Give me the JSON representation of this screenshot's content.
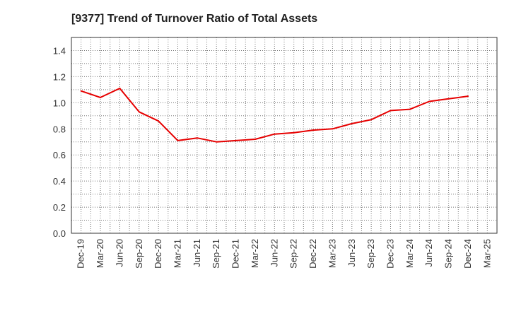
{
  "chart_data": {
    "type": "line",
    "title": "[9377]  Trend of Turnover Ratio of Total Assets",
    "xlabel": "",
    "ylabel": "",
    "x": [
      "Dec-19",
      "Mar-20",
      "Jun-20",
      "Sep-20",
      "Dec-20",
      "Mar-21",
      "Jun-21",
      "Sep-21",
      "Dec-21",
      "Mar-22",
      "Jun-22",
      "Sep-22",
      "Dec-22",
      "Mar-23",
      "Jun-23",
      "Sep-23",
      "Dec-23",
      "Mar-24",
      "Jun-24",
      "Sep-24",
      "Dec-24",
      "Mar-25"
    ],
    "series": [
      {
        "values": [
          1.09,
          1.04,
          1.11,
          0.93,
          0.86,
          0.71,
          0.73,
          0.7,
          0.71,
          0.72,
          0.76,
          0.77,
          0.79,
          0.8,
          0.84,
          0.87,
          0.94,
          0.95,
          1.01,
          1.03,
          1.05,
          null
        ],
        "color": "#e60000"
      }
    ],
    "ylim": [
      0,
      1.5
    ],
    "yticks": [
      "0.0",
      "0.2",
      "0.4",
      "0.6",
      "0.8",
      "1.0",
      "1.2",
      "1.4"
    ],
    "grid": true,
    "legend": "none"
  }
}
